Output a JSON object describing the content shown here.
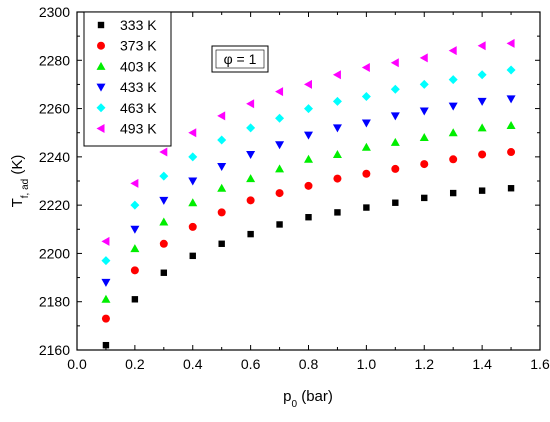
{
  "chart_data": {
    "type": "scatter",
    "xlabel": {
      "main": "p",
      "sub": "0",
      "tail": " (bar)"
    },
    "ylabel": {
      "main": "T",
      "sub": "f, ad",
      "tail": " (K)"
    },
    "xlim": [
      0.0,
      1.6
    ],
    "ylim": [
      2160,
      2300
    ],
    "xticks": [
      0.0,
      0.2,
      0.4,
      0.6,
      0.8,
      1.0,
      1.2,
      1.4,
      1.6
    ],
    "xtick_labels": [
      "0.0",
      "0.2",
      "0.4",
      "0.6",
      "0.8",
      "1.0",
      "1.2",
      "1.4",
      "1.6"
    ],
    "yticks": [
      2160,
      2180,
      2200,
      2220,
      2240,
      2260,
      2280,
      2300
    ],
    "ytick_labels": [
      "2160",
      "2180",
      "2200",
      "2220",
      "2240",
      "2260",
      "2280",
      "2300"
    ],
    "grid": false,
    "legend_position": "top-left",
    "annotation": "φ = 1",
    "x": [
      0.1,
      0.2,
      0.3,
      0.4,
      0.5,
      0.6,
      0.7,
      0.8,
      0.9,
      1.0,
      1.1,
      1.2,
      1.3,
      1.4,
      1.5
    ],
    "series": [
      {
        "name": "333 K",
        "marker": "square",
        "color": "#000000",
        "values": [
          2162,
          2181,
          2192,
          2199,
          2204,
          2208,
          2212,
          2215,
          2217,
          2219,
          2221,
          2223,
          2225,
          2226,
          2227
        ]
      },
      {
        "name": "373 K",
        "marker": "circle",
        "color": "#ff0000",
        "values": [
          2173,
          2193,
          2204,
          2211,
          2217,
          2222,
          2225,
          2228,
          2231,
          2233,
          2235,
          2237,
          2239,
          2241,
          2242
        ]
      },
      {
        "name": "403 K",
        "marker": "triangle-up",
        "color": "#00ee00",
        "values": [
          2181,
          2202,
          2213,
          2221,
          2227,
          2231,
          2235,
          2239,
          2241,
          2244,
          2246,
          2248,
          2250,
          2252,
          2253
        ]
      },
      {
        "name": "433 K",
        "marker": "triangle-down",
        "color": "#0000ff",
        "values": [
          2188,
          2210,
          2222,
          2230,
          2236,
          2241,
          2245,
          2249,
          2252,
          2254,
          2257,
          2259,
          2261,
          2263,
          2264
        ]
      },
      {
        "name": "463 K",
        "marker": "diamond",
        "color": "#00ffff",
        "values": [
          2197,
          2220,
          2232,
          2240,
          2247,
          2252,
          2256,
          2260,
          2263,
          2265,
          2268,
          2270,
          2272,
          2274,
          2276
        ]
      },
      {
        "name": "493 K",
        "marker": "triangle-left",
        "color": "#ff00ff",
        "values": [
          2205,
          2229,
          2242,
          2250,
          2257,
          2262,
          2267,
          2270,
          2274,
          2277,
          2279,
          2281,
          2284,
          2286,
          2287
        ]
      }
    ]
  }
}
